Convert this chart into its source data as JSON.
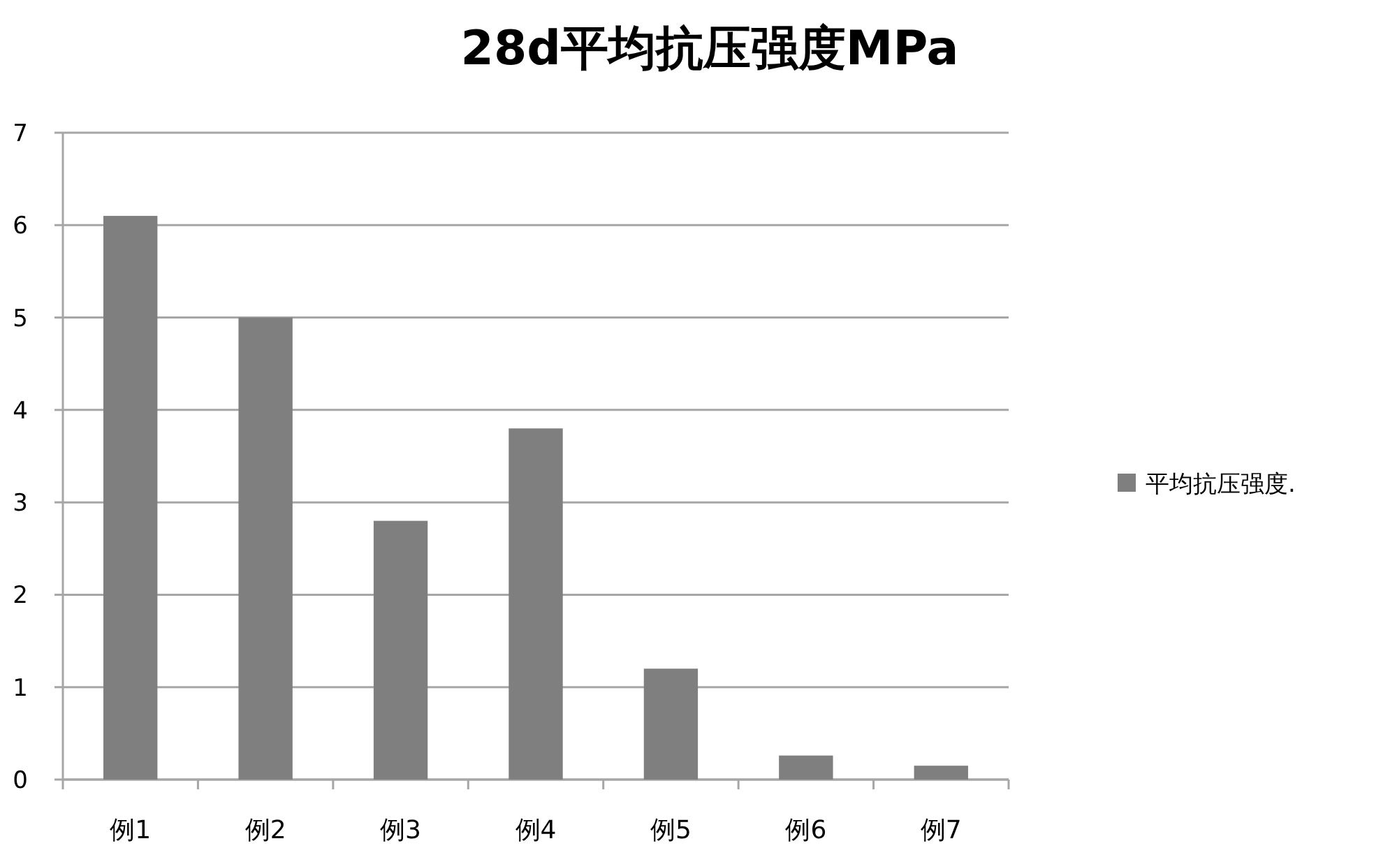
{
  "chart_data": {
    "type": "bar",
    "title": "28d平均抗压强度MPa",
    "categories": [
      "例1",
      "例2",
      "例3",
      "例4",
      "例5",
      "例6",
      "例7"
    ],
    "series": [
      {
        "name": "平均抗压强度.",
        "color": "#7f7f7f",
        "values": [
          6.1,
          5.0,
          2.8,
          3.8,
          1.2,
          0.26,
          0.15
        ]
      }
    ],
    "ylim": [
      0,
      7
    ],
    "yticks": [
      0,
      1,
      2,
      3,
      4,
      5,
      6,
      7
    ],
    "grid": "y",
    "legend": "right"
  }
}
